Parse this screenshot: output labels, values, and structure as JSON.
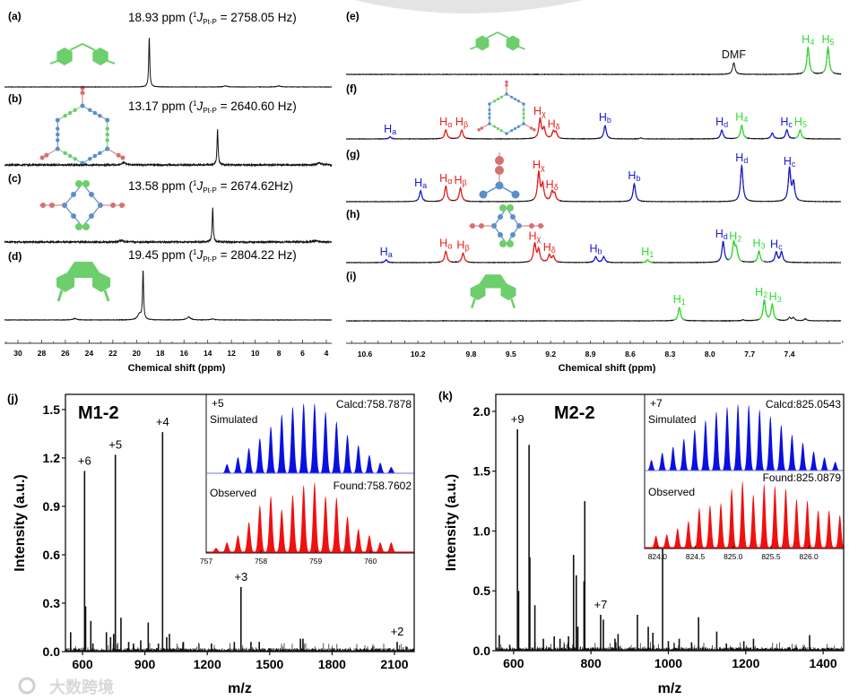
{
  "colors": {
    "black": "#111111",
    "blue": "#1a1ad0",
    "red": "#e8201c",
    "green": "#2edb2e",
    "sim": "#0a10e0",
    "obs": "#f01010",
    "mol_green": "#6ccf6c",
    "mol_blue": "#5b8fc9",
    "mol_red": "#d87070"
  },
  "watermark": "大数跨境",
  "chart_data": [
    {
      "id": "31P-NMR",
      "type": "line",
      "xlabel": "Chemical shift (ppm)",
      "xlim": [
        31.1,
        3.5
      ],
      "xticks": [
        "30",
        "28",
        "26",
        "24",
        "22",
        "20",
        "18",
        "16",
        "14",
        "12",
        "10",
        "8",
        "6",
        "4"
      ],
      "spectra": [
        {
          "panel": "(a)",
          "shift_text": "18.93 ppm (",
          "j_sup": "1",
          "j_symbol": "J",
          "j_sub": "Pt-P",
          "coupling_text": " = 2758.05 Hz)",
          "noise": 0.25,
          "peaks": [
            {
              "ppm": 18.93,
              "h": 1
            },
            {
              "ppm": 12.5,
              "h": 0.02
            },
            {
              "ppm": 8.0,
              "h": 0.02
            }
          ]
        },
        {
          "panel": "(b)",
          "shift_text": "13.17 ppm (",
          "j_sup": "1",
          "j_symbol": "J",
          "j_sub": "Pt-P",
          "coupling_text": " = 2640.60 Hz)",
          "noise": 1.0,
          "peaks": [
            {
              "ppm": 13.17,
              "h": 1
            },
            {
              "ppm": 21.1,
              "h": 0.07
            },
            {
              "ppm": 4.6,
              "h": 0.06
            }
          ]
        },
        {
          "panel": "(c)",
          "shift_text": "13.58 ppm (",
          "j_sup": "1",
          "j_symbol": "J",
          "j_sub": "Pt-P",
          "coupling_text": " = 2674.62Hz)",
          "noise": 1.0,
          "peaks": [
            {
              "ppm": 13.58,
              "h": 1
            },
            {
              "ppm": 21.3,
              "h": 0.05
            },
            {
              "ppm": 4.9,
              "h": 0.04
            }
          ]
        },
        {
          "panel": "(d)",
          "shift_text": "19.45 ppm (",
          "j_sup": "1",
          "j_symbol": "J",
          "j_sub": "Pt-P",
          "coupling_text": " = 2804.22 Hz)",
          "noise": 0.3,
          "peaks": [
            {
              "ppm": 19.45,
              "h": 1
            },
            {
              "ppm": 19.75,
              "h": 0.12
            },
            {
              "ppm": 25.2,
              "h": 0.03
            },
            {
              "ppm": 15.6,
              "h": 0.06
            },
            {
              "ppm": 13.6,
              "h": 0.02
            }
          ]
        }
      ]
    },
    {
      "id": "1H-NMR",
      "type": "line",
      "xlabel": "Chemical shift (ppm)",
      "xlim": [
        10.74,
        7.03
      ],
      "xticks": [
        "10.6",
        "10.2",
        "9.8",
        "9.5",
        "9.2",
        "8.9",
        "8.6",
        "8.3",
        "8.0",
        "7.7",
        "7.4"
      ],
      "spectra": [
        {
          "panel": "(e)",
          "peaks": [
            {
              "ppm": 7.82,
              "h": 0.43,
              "c": "black",
              "label": "DMF",
              "sub": ""
            },
            {
              "ppm": 7.26,
              "h": 1,
              "c": "green",
              "label": "H",
              "sub": "4"
            },
            {
              "ppm": 7.11,
              "h": 1,
              "c": "green",
              "label": "H",
              "sub": "5"
            }
          ]
        },
        {
          "panel": "(f)",
          "peaks": [
            {
              "ppm": 10.41,
              "h": 0.1,
              "c": "blue",
              "label": "H",
              "sub": "a"
            },
            {
              "ppm": 9.99,
              "h": 0.45,
              "c": "red",
              "label": "H",
              "sub": "α"
            },
            {
              "ppm": 9.87,
              "h": 0.45,
              "c": "red",
              "label": "H",
              "sub": "β"
            },
            {
              "ppm": 9.28,
              "h": 1,
              "c": "red",
              "label": "H",
              "sub": "χ"
            },
            {
              "ppm": 9.25,
              "h": 0.5,
              "c": "red"
            },
            {
              "ppm": 9.18,
              "h": 0.35,
              "c": "red",
              "label": "H",
              "sub": "δ"
            },
            {
              "ppm": 9.16,
              "h": 0.3,
              "c": "red"
            },
            {
              "ppm": 8.79,
              "h": 0.68,
              "c": "blue",
              "label": "H",
              "sub": "b"
            },
            {
              "ppm": 8.52,
              "h": 0.05,
              "c": "black"
            },
            {
              "ppm": 7.91,
              "h": 0.45,
              "c": "blue",
              "label": "H",
              "sub": "d"
            },
            {
              "ppm": 7.76,
              "h": 0.7,
              "c": "green",
              "label": "H",
              "sub": "4"
            },
            {
              "ppm": 7.53,
              "h": 0.3,
              "c": "blue"
            },
            {
              "ppm": 7.42,
              "h": 0.45,
              "c": "blue",
              "label": "H",
              "sub": "c"
            },
            {
              "ppm": 7.32,
              "h": 0.45,
              "c": "green",
              "label": "H",
              "sub": "5"
            }
          ]
        },
        {
          "panel": "(g)",
          "peaks": [
            {
              "ppm": 10.18,
              "h": 0.3,
              "c": "blue",
              "label": "H",
              "sub": "a"
            },
            {
              "ppm": 9.99,
              "h": 0.43,
              "c": "red",
              "label": "H",
              "sub": "α"
            },
            {
              "ppm": 9.88,
              "h": 0.38,
              "c": "red",
              "label": "H",
              "sub": "β"
            },
            {
              "ppm": 9.29,
              "h": 0.8,
              "c": "red",
              "label": "H",
              "sub": "χ"
            },
            {
              "ppm": 9.26,
              "h": 0.45,
              "c": "red"
            },
            {
              "ppm": 9.19,
              "h": 0.25,
              "c": "red",
              "label": "H",
              "sub": "δ"
            },
            {
              "ppm": 9.17,
              "h": 0.2,
              "c": "red"
            },
            {
              "ppm": 8.57,
              "h": 0.5,
              "c": "blue",
              "label": "H",
              "sub": "b"
            },
            {
              "ppm": 7.76,
              "h": 1,
              "c": "blue",
              "label": "H",
              "sub": "d"
            },
            {
              "ppm": 7.4,
              "h": 0.9,
              "c": "blue",
              "label": "H",
              "sub": "c"
            },
            {
              "ppm": 7.37,
              "h": 0.5,
              "c": "blue"
            }
          ]
        },
        {
          "panel": "(h)",
          "peaks": [
            {
              "ppm": 10.44,
              "h": 0.13,
              "c": "blue",
              "label": "H",
              "sub": "a"
            },
            {
              "ppm": 9.99,
              "h": 0.55,
              "c": "red",
              "label": "H",
              "sub": "α"
            },
            {
              "ppm": 9.86,
              "h": 0.45,
              "c": "red",
              "label": "H",
              "sub": "β"
            },
            {
              "ppm": 9.32,
              "h": 0.9,
              "c": "red",
              "label": "H",
              "sub": "χ"
            },
            {
              "ppm": 9.29,
              "h": 0.6,
              "c": "red"
            },
            {
              "ppm": 9.21,
              "h": 0.35,
              "c": "red",
              "label": "H",
              "sub": "δ"
            },
            {
              "ppm": 9.18,
              "h": 0.3,
              "c": "red"
            },
            {
              "ppm": 8.86,
              "h": 0.28,
              "c": "blue",
              "label": "H",
              "sub": "b"
            },
            {
              "ppm": 8.8,
              "h": 0.28,
              "c": "blue"
            },
            {
              "ppm": 8.47,
              "h": 0.13,
              "c": "green",
              "label": "H",
              "sub": "1"
            },
            {
              "ppm": 7.9,
              "h": 1,
              "c": "blue",
              "label": "H",
              "sub": "d"
            },
            {
              "ppm": 7.82,
              "h": 0.9,
              "c": "green",
              "label": "H",
              "sub": "2"
            },
            {
              "ppm": 7.8,
              "h": 0.6,
              "c": "green"
            },
            {
              "ppm": 7.63,
              "h": 0.55,
              "c": "green",
              "label": "H",
              "sub": "3"
            },
            {
              "ppm": 7.5,
              "h": 0.5,
              "c": "blue",
              "label": "H",
              "sub": "c"
            },
            {
              "ppm": 7.46,
              "h": 0.5,
              "c": "blue"
            }
          ]
        },
        {
          "panel": "(i)",
          "peaks": [
            {
              "ppm": 8.23,
              "h": 0.65,
              "c": "green",
              "label": "H",
              "sub": "1"
            },
            {
              "ppm": 7.75,
              "h": 0.05,
              "c": "black"
            },
            {
              "ppm": 7.59,
              "h": 1,
              "c": "green",
              "label": "H",
              "sub": "2"
            },
            {
              "ppm": 7.53,
              "h": 0.78,
              "c": "green",
              "label": "H",
              "sub": "3"
            },
            {
              "ppm": 7.4,
              "h": 0.15,
              "c": "black"
            },
            {
              "ppm": 7.37,
              "h": 0.15,
              "c": "black"
            },
            {
              "ppm": 7.28,
              "h": 0.1,
              "c": "black"
            }
          ]
        }
      ]
    },
    {
      "id": "ESI-MS-M1-2",
      "panel": "(j)",
      "type": "bar",
      "title": "M1-2",
      "xlabel": "m/z",
      "ylabel": "Intensity (a.u.)",
      "xlim": [
        518,
        2195
      ],
      "ylim": [
        0,
        1.594
      ],
      "xticks": [
        600,
        900,
        1200,
        1500,
        1800,
        2100
      ],
      "yticks": [
        "0.0",
        "0.3",
        "0.6",
        "0.9",
        "1.2",
        "1.5"
      ],
      "peaks": [
        [
          543,
          0.12
        ],
        [
          610,
          1.12
        ],
        [
          615,
          0.28
        ],
        [
          640,
          0.19
        ],
        [
          650,
          0.05
        ],
        [
          715,
          0.12
        ],
        [
          735,
          0.09
        ],
        [
          750,
          0.11
        ],
        [
          758,
          1.22
        ],
        [
          785,
          0.21
        ],
        [
          822,
          0.06
        ],
        [
          845,
          0.05
        ],
        [
          880,
          0.07
        ],
        [
          916,
          0.18
        ],
        [
          965,
          0.05
        ],
        [
          985,
          1.36
        ],
        [
          1005,
          0.09
        ],
        [
          1018,
          0.11
        ],
        [
          1085,
          0.06
        ],
        [
          1220,
          0.05
        ],
        [
          1330,
          0.06
        ],
        [
          1362,
          0.4
        ],
        [
          1410,
          0.06
        ],
        [
          1450,
          0.06
        ],
        [
          1648,
          0.08
        ],
        [
          1660,
          0.08
        ],
        [
          2113,
          0.06
        ],
        [
          2160,
          0.03
        ]
      ],
      "annotations": [
        {
          "text": "+6",
          "mz": 610,
          "y": 1.12
        },
        {
          "text": "+5",
          "mz": 758,
          "y": 1.22
        },
        {
          "text": "+4",
          "mz": 985,
          "y": 1.36
        },
        {
          "text": "+3",
          "mz": 1362,
          "y": 0.4
        },
        {
          "text": "+2",
          "mz": 2113,
          "y": 0.06
        }
      ],
      "inset": {
        "charge": "+5",
        "sim_label": "Simulated",
        "obs_label": "Observed",
        "calcd": "Calcd:758.7878",
        "found": "Found:758.7602",
        "xlim": [
          757,
          760.8
        ],
        "xticks": [
          "757",
          "758",
          "759",
          "760"
        ],
        "simulated": {
          "mz_start": 757.38,
          "spacing": 0.2,
          "intensities": [
            0.13,
            0.23,
            0.36,
            0.5,
            0.67,
            0.84,
            0.95,
            1.0,
            1.0,
            0.88,
            0.74,
            0.55,
            0.4,
            0.26,
            0.15,
            0.09
          ]
        },
        "observed": {
          "mz_start": 757.18,
          "spacing": 0.2,
          "intensities": [
            0.06,
            0.14,
            0.24,
            0.43,
            0.67,
            0.8,
            0.61,
            0.82,
            0.96,
            1.0,
            0.8,
            0.78,
            0.51,
            0.33,
            0.24,
            0.14,
            0.14
          ]
        }
      }
    },
    {
      "id": "ESI-MS-M2-2",
      "panel": "(k)",
      "type": "bar",
      "title": "M2-2",
      "xlabel": "m/z",
      "ylabel": "Intensity (a.u.)",
      "xlim": [
        554,
        1453
      ],
      "ylim": [
        0,
        2.142
      ],
      "xticks": [
        600,
        800,
        1000,
        1200,
        1400
      ],
      "yticks": [
        "0.0",
        "0.5",
        "1.0",
        "1.5",
        "2.0"
      ],
      "peaks": [
        [
          563,
          0.13
        ],
        [
          590,
          0.05
        ],
        [
          610,
          1.85
        ],
        [
          613,
          0.5
        ],
        [
          640,
          1.72
        ],
        [
          642,
          0.78
        ],
        [
          655,
          0.38
        ],
        [
          677,
          0.1
        ],
        [
          705,
          0.12
        ],
        [
          720,
          0.1
        ],
        [
          742,
          0.12
        ],
        [
          755,
          0.8
        ],
        [
          762,
          0.63
        ],
        [
          766,
          0.2
        ],
        [
          782,
          0.58
        ],
        [
          784,
          1.25
        ],
        [
          825,
          0.3
        ],
        [
          832,
          0.26
        ],
        [
          862,
          0.1
        ],
        [
          870,
          0.14
        ],
        [
          920,
          0.3
        ],
        [
          948,
          0.2
        ],
        [
          960,
          0.15
        ],
        [
          985,
          1.47
        ],
        [
          1000,
          0.08
        ],
        [
          1028,
          0.1
        ],
        [
          1060,
          0.07
        ],
        [
          1078,
          0.28
        ],
        [
          1125,
          0.16
        ],
        [
          1150,
          0.06
        ],
        [
          1195,
          0.08
        ],
        [
          1220,
          0.1
        ],
        [
          1365,
          0.13
        ]
      ],
      "annotations": [
        {
          "text": "+9",
          "mz": 610,
          "y": 1.85
        },
        {
          "text": "+7",
          "mz": 825,
          "y": 0.3
        }
      ],
      "inset": {
        "charge": "+7",
        "sim_label": "Simulated",
        "obs_label": "Observed",
        "calcd": "Calcd:825.0543",
        "found": "Found:825.0879",
        "xlim": [
          823.83,
          826.46
        ],
        "xticks": [
          "824.0",
          "824.5",
          "825.0",
          "825.5",
          "826.0"
        ],
        "simulated": {
          "mz_start": 823.92,
          "spacing": 0.1429,
          "intensities": [
            0.16,
            0.27,
            0.36,
            0.48,
            0.62,
            0.76,
            0.89,
            0.96,
            1.0,
            0.99,
            0.92,
            0.82,
            0.69,
            0.54,
            0.42,
            0.29,
            0.2,
            0.13
          ]
        },
        "observed": {
          "mz_start": 823.98,
          "spacing": 0.1429,
          "intensities": [
            0.18,
            0.2,
            0.29,
            0.4,
            0.6,
            0.64,
            0.67,
            0.89,
            1.0,
            0.8,
            0.96,
            0.93,
            0.89,
            0.73,
            0.71,
            0.56,
            0.56,
            0.49
          ]
        }
      }
    }
  ]
}
